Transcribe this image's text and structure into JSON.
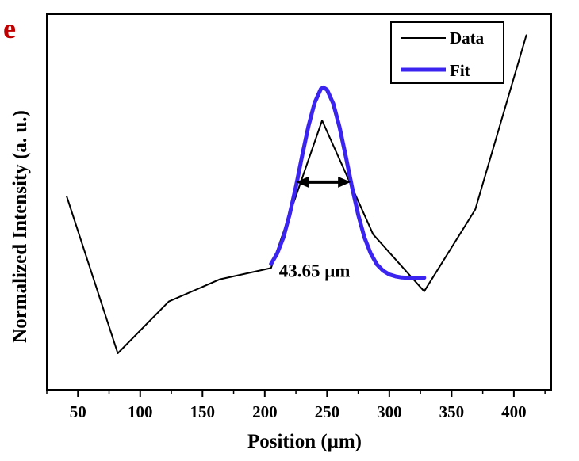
{
  "panel_label": "e",
  "colors": {
    "data_line": "#000000",
    "fit_line": "#3b24f0",
    "panel_label": "#c00000",
    "frame": "#000000"
  },
  "chart_data": {
    "type": "line",
    "title": "",
    "xlabel": "Position (μm)",
    "ylabel": "Normalized Intensity (a. u.)",
    "xlim": [
      25,
      430
    ],
    "ylim": [
      0,
      1
    ],
    "xticks": [
      50,
      100,
      150,
      200,
      250,
      300,
      350,
      400
    ],
    "xtick_labels": [
      "50",
      "100",
      "150",
      "200",
      "250",
      "300",
      "350",
      "400"
    ],
    "grid": false,
    "legend_position": "top-right",
    "series": [
      {
        "name": "Data",
        "color": "#000000",
        "x": [
          41,
          82,
          123,
          164,
          205,
          246,
          287,
          328,
          369,
          410
        ],
        "y": [
          0.515,
          0.097,
          0.235,
          0.294,
          0.324,
          0.717,
          0.414,
          0.262,
          0.48,
          0.944
        ]
      },
      {
        "name": "Fit",
        "color": "#3b24f0",
        "x": [
          205,
          210,
          215,
          220,
          225,
          230,
          235,
          240,
          245,
          247,
          250,
          255,
          260,
          265,
          270,
          275,
          280,
          285,
          290,
          295,
          300,
          305,
          310,
          315,
          320,
          325,
          328
        ],
        "y": [
          0.335,
          0.363,
          0.406,
          0.467,
          0.541,
          0.623,
          0.701,
          0.764,
          0.801,
          0.805,
          0.799,
          0.762,
          0.7,
          0.622,
          0.541,
          0.466,
          0.406,
          0.363,
          0.334,
          0.317,
          0.307,
          0.302,
          0.299,
          0.298,
          0.298,
          0.298,
          0.298
        ]
      }
    ],
    "annotations": [
      {
        "text": "43.65 μm",
        "type": "double-arrow",
        "x_start": 225,
        "x_end": 269,
        "y": 0.553,
        "text_x": 240,
        "text_y": 0.318
      }
    ]
  }
}
